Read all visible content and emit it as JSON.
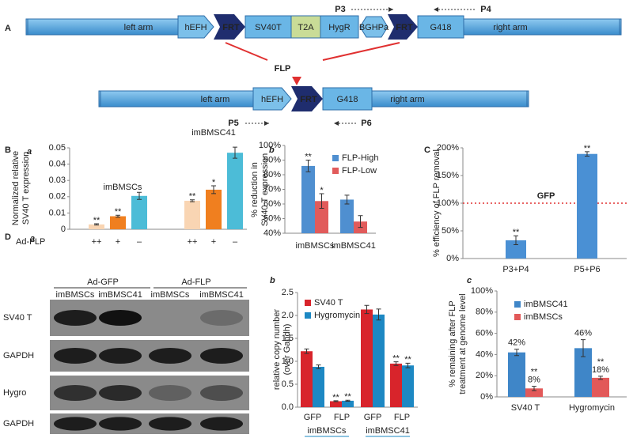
{
  "diagram": {
    "panel": "A",
    "construct": [
      "left arm",
      "hEFH",
      "FRT",
      "SV40T",
      "T2A",
      "HygR",
      "BGHPa",
      "FRT",
      "G418",
      "right arm"
    ],
    "construct_primers": [
      "P3",
      "P4"
    ],
    "recombinase": "FLP",
    "product": [
      "left arm",
      "hEFH",
      "FRT",
      "G418",
      "right arm"
    ],
    "product_primers": [
      "P5",
      "P6"
    ]
  },
  "blot": {
    "panel": "D",
    "subpanel": "a",
    "headers": [
      "Ad-GFP",
      "Ad-FLP"
    ],
    "lanes": [
      "imBMSCs",
      "imBMSC41",
      "imBMSCs",
      "imBMSC41"
    ],
    "rows": [
      "SV40 T",
      "GAPDH",
      "Hygro",
      "GAPDH"
    ]
  },
  "chart_data": [
    {
      "type": "bar",
      "panel": "B",
      "subpanel": "a",
      "y_label": [
        "Normalized relative",
        "SV40 T expression"
      ],
      "x_label": "Ad-FLP",
      "categories": [
        "++",
        "+",
        "–",
        "++",
        "+",
        "–"
      ],
      "groups": [
        "imBMSCs",
        "imBMSC41"
      ],
      "group_color": "#e8312f",
      "values": [
        0.003,
        0.008,
        0.0205,
        0.0175,
        0.0243,
        0.047
      ],
      "errors": [
        0.0004,
        0.0006,
        0.0022,
        0.0006,
        0.0024,
        0.0034
      ],
      "colors": [
        "#f9d5b3",
        "#f07f1f",
        "#4cbcd7",
        "#f9d5b3",
        "#f07f1f",
        "#4cbcd7"
      ],
      "significance": [
        "**",
        "**",
        null,
        "**",
        "*",
        null
      ],
      "ylim": [
        0,
        0.05
      ],
      "yticks": [
        0,
        0.01,
        0.02,
        0.03,
        0.04,
        0.05
      ]
    },
    {
      "type": "bar",
      "subpanel": "b",
      "y_label": [
        "% reduction in",
        "SV40 T expression"
      ],
      "categories": [
        "imBMSCs",
        "imBMSC41"
      ],
      "series": [
        {
          "name": "FLP-High",
          "color": "#4f8fd0",
          "values": [
            86,
            63
          ],
          "errors": [
            4,
            3
          ],
          "significance": [
            "**",
            null
          ]
        },
        {
          "name": "FLP-Low",
          "color": "#e15b5b",
          "values": [
            62,
            48
          ],
          "errors": [
            5,
            4
          ],
          "significance": [
            "*",
            null
          ]
        }
      ],
      "ylim": [
        40,
        100
      ],
      "yticks": [
        {
          "value": 40,
          "label": "40%"
        },
        {
          "value": 50,
          "label": "50%"
        },
        {
          "value": 60,
          "label": "60%"
        },
        {
          "value": 70,
          "label": "70%"
        },
        {
          "value": 80,
          "label": "80%"
        },
        {
          "value": 90,
          "label": "90%"
        },
        {
          "value": 100,
          "label": "100%"
        }
      ]
    },
    {
      "type": "bar",
      "panel": "C",
      "y_label": [
        "% efficiency of FLP removal"
      ],
      "categories": [
        "P3+P4",
        "P5+P6"
      ],
      "values": [
        33,
        189
      ],
      "errors": [
        8,
        4
      ],
      "color": "#4a90d4",
      "significance": [
        "**",
        "**"
      ],
      "reference_line": {
        "value": 100,
        "label": "GFP",
        "color": "#e03030",
        "label_color": "#1aa33a"
      },
      "ylim": [
        0,
        200
      ],
      "yticks": [
        {
          "value": 0,
          "label": "0%"
        },
        {
          "value": 50,
          "label": "50%"
        },
        {
          "value": 100,
          "label": "100%"
        },
        {
          "value": 150,
          "label": "150%"
        },
        {
          "value": 200,
          "label": "200%"
        }
      ]
    },
    {
      "type": "bar",
      "subpanel": "b",
      "y_label": [
        "relative copy number",
        "(over Gapdh)"
      ],
      "categories": [
        "GFP",
        "FLP",
        "GFP",
        "FLP"
      ],
      "groups": [
        "imBMSCs",
        "imBMSC41"
      ],
      "group_color": "#1d88c3",
      "group_underline": true,
      "series": [
        {
          "name": "SV40 T",
          "color": "#d8242b",
          "values": [
            1.22,
            0.13,
            2.13,
            0.95
          ],
          "errors": [
            0.05,
            0.01,
            0.09,
            0.04
          ],
          "significance": [
            null,
            "**",
            null,
            "**"
          ]
        },
        {
          "name": "Hygromycin",
          "color": "#1d88c3",
          "values": [
            0.88,
            0.14,
            2.02,
            0.91
          ],
          "errors": [
            0.04,
            0.01,
            0.12,
            0.05
          ],
          "significance": [
            null,
            "**",
            null,
            "**"
          ]
        }
      ],
      "ylim": [
        0,
        2.5
      ],
      "yticks": [
        {
          "value": 0,
          "label": "0.0"
        },
        {
          "value": 0.5,
          "label": "0.5"
        },
        {
          "value": 1,
          "label": "1.0"
        },
        {
          "value": 1.5,
          "label": "1.5"
        },
        {
          "value": 2,
          "label": "2.0"
        },
        {
          "value": 2.5,
          "label": "2.5"
        }
      ]
    },
    {
      "type": "bar",
      "subpanel": "c",
      "y_label": [
        "% remaining after FLP",
        "treatment at genome level"
      ],
      "categories": [
        "SV40 T",
        "Hygromycin"
      ],
      "series": [
        {
          "name": "imBMSC41",
          "color": "#3f86c8",
          "values": [
            42,
            46
          ],
          "value_labels": [
            "42%",
            "46%"
          ],
          "errors": [
            3,
            8
          ]
        },
        {
          "name": "imBMSCs",
          "color": "#e25959",
          "values": [
            8,
            18
          ],
          "value_labels": [
            "8%",
            "18%"
          ],
          "errors": [
            2,
            1.5
          ],
          "significance": [
            "**",
            "**"
          ]
        }
      ],
      "ylim": [
        0,
        100
      ],
      "yticks": [
        {
          "value": 0,
          "label": "0%"
        },
        {
          "value": 20,
          "label": "20%"
        },
        {
          "value": 40,
          "label": "40%"
        },
        {
          "value": 60,
          "label": "60%"
        },
        {
          "value": 80,
          "label": "80%"
        },
        {
          "value": 100,
          "label": "100%"
        }
      ]
    }
  ]
}
